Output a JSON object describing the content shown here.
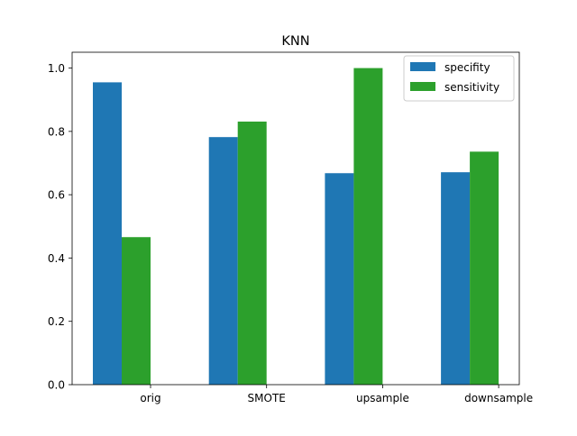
{
  "chart_data": {
    "type": "bar",
    "title": "KNN",
    "xlabel": "",
    "ylabel": "",
    "categories": [
      "orig",
      "SMOTE",
      "upsample",
      "downsample"
    ],
    "series": [
      {
        "name": "specifity",
        "color": "#1f77b4",
        "values": [
          0.955,
          0.782,
          0.668,
          0.671
        ]
      },
      {
        "name": "sensitivity",
        "color": "#2ca02c",
        "values": [
          0.466,
          0.831,
          1.0,
          0.736
        ]
      }
    ],
    "ylim": [
      0,
      1.05
    ],
    "yticks": [
      "0.0",
      "0.2",
      "0.4",
      "0.6",
      "0.8",
      "1.0"
    ],
    "grid": false,
    "legend": "top-right"
  }
}
